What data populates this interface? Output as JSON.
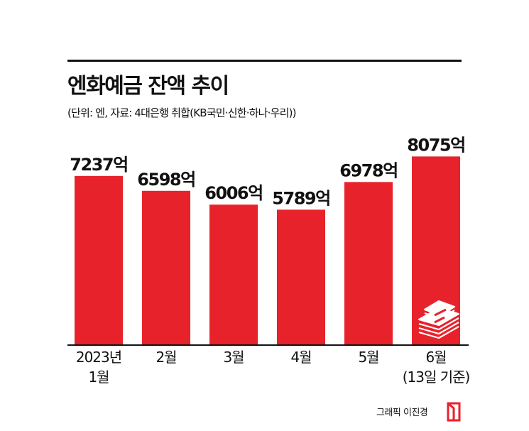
{
  "header": {
    "title": "엔화예금 잔액 추이",
    "subtitle": "(단위: 엔, 자료: 4대은행 취합(KB국민·신한·하나·우리))"
  },
  "chart_data": {
    "type": "bar",
    "title": "엔화예금 잔액 추이",
    "categories": [
      [
        "2023년",
        "1월"
      ],
      [
        "2월"
      ],
      [
        "3월"
      ],
      [
        "4월"
      ],
      [
        "5월"
      ],
      [
        "6월",
        "(13일 기준)"
      ]
    ],
    "values": [
      7237,
      6598,
      6006,
      5789,
      6978,
      8075
    ],
    "value_labels": [
      "7237억",
      "6598억",
      "6006억",
      "5789억",
      "6978억",
      "8075억"
    ],
    "bar_color": "#e8222b",
    "ylim": [
      0,
      8300
    ],
    "grid": false,
    "legend": "none"
  },
  "footer": {
    "credit": "그래픽 이진경",
    "logo_color": "#e8222b"
  },
  "icons": {
    "money_icon": "money-stack-icon"
  }
}
